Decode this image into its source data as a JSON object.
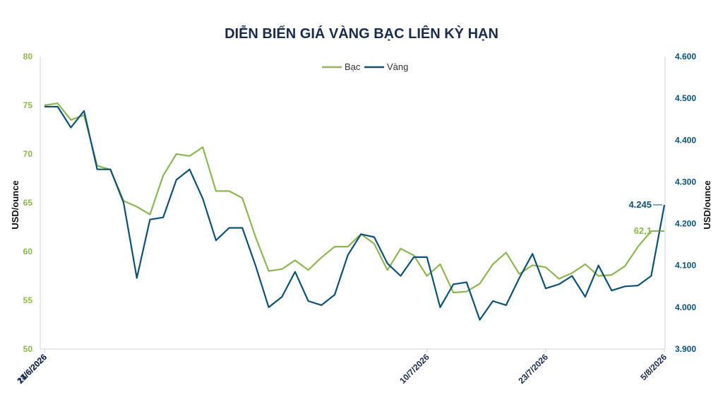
{
  "chart_data": {
    "type": "line",
    "title": "DIỄN BIẾN GIÁ VÀNG BẠC LIÊN KỲ HẠN",
    "ylabel_left": "USD/ounce",
    "ylabel_right": "USD/ounce",
    "ylim_left": [
      50,
      80
    ],
    "ylim_right": [
      3900,
      4600
    ],
    "y_ticks_left": [
      "50",
      "55",
      "60",
      "65",
      "70",
      "75",
      "80"
    ],
    "y_ticks_right": [
      "3.900",
      "4.000",
      "4.100",
      "4.200",
      "4.300",
      "4.400",
      "4.500",
      "4.600"
    ],
    "x_tick_labels": [
      "1/6/2026",
      "14/6/2026",
      "27/6/2026",
      "10/7/2026",
      "23/7/2026",
      "5/8/2026"
    ],
    "grid": false,
    "legend_position": "top-center",
    "colors": {
      "silver": "#8db554",
      "gold": "#0d5173",
      "left_axis": "#8db554",
      "right_axis": "#0d5173",
      "title": "#1b2b4b"
    },
    "series": [
      {
        "name": "Bạc",
        "axis": "left",
        "color": "#8db554",
        "x": [
          "1/6/2026",
          "2/6/2026",
          "3/6/2026",
          "4/6/2026",
          "5/6/2026",
          "8/6/2026",
          "9/6/2026",
          "10/6/2026",
          "11/6/2026",
          "12/6/2026",
          "15/6/2026",
          "16/6/2026",
          "17/6/2026",
          "18/6/2026",
          "19/6/2026",
          "22/6/2026",
          "23/6/2026",
          "24/6/2026",
          "25/6/2026",
          "26/6/2026",
          "29/6/2026",
          "30/6/2026",
          "1/7/2026",
          "2/7/2026",
          "3/7/2026",
          "6/7/2026",
          "7/7/2026",
          "8/7/2026",
          "9/7/2026",
          "10/7/2026",
          "13/7/2026",
          "14/7/2026",
          "15/7/2026",
          "16/7/2026",
          "17/7/2026",
          "20/7/2026",
          "21/7/2026",
          "22/7/2026",
          "23/7/2026",
          "24/7/2026",
          "27/7/2026",
          "28/7/2026",
          "29/7/2026",
          "30/7/2026",
          "31/7/2026",
          "3/8/2026",
          "4/8/2026",
          "5/8/2026"
        ],
        "values": [
          75.0,
          75.2,
          73.5,
          74.0,
          68.8,
          68.4,
          65.2,
          64.6,
          63.8,
          67.8,
          70.0,
          69.8,
          70.7,
          66.2,
          66.2,
          65.5,
          61.5,
          58.0,
          58.2,
          59.1,
          58.1,
          59.4,
          60.5,
          60.5,
          61.8,
          60.8,
          58.1,
          60.3,
          59.6,
          57.5,
          58.7,
          55.8,
          55.9,
          56.7,
          58.7,
          59.9,
          57.7,
          58.6,
          58.4,
          57.2,
          57.8,
          58.7,
          57.5,
          57.6,
          58.5,
          60.5,
          62.1,
          62.1
        ],
        "end_label": "62,1"
      },
      {
        "name": "Vàng",
        "axis": "right",
        "color": "#0d5173",
        "x": [
          "1/6/2026",
          "2/6/2026",
          "3/6/2026",
          "4/6/2026",
          "5/6/2026",
          "8/6/2026",
          "9/6/2026",
          "10/6/2026",
          "11/6/2026",
          "12/6/2026",
          "15/6/2026",
          "16/6/2026",
          "17/6/2026",
          "18/6/2026",
          "19/6/2026",
          "22/6/2026",
          "23/6/2026",
          "24/6/2026",
          "25/6/2026",
          "26/6/2026",
          "29/6/2026",
          "30/6/2026",
          "1/7/2026",
          "2/7/2026",
          "3/7/2026",
          "6/7/2026",
          "7/7/2026",
          "8/7/2026",
          "9/7/2026",
          "10/7/2026",
          "13/7/2026",
          "14/7/2026",
          "15/7/2026",
          "16/7/2026",
          "17/7/2026",
          "20/7/2026",
          "21/7/2026",
          "22/7/2026",
          "23/7/2026",
          "24/7/2026",
          "27/7/2026",
          "28/7/2026",
          "29/7/2026",
          "30/7/2026",
          "31/7/2026",
          "3/8/2026",
          "4/8/2026",
          "5/8/2026"
        ],
        "values": [
          4480,
          4480,
          4430,
          4470,
          4330,
          4330,
          4250,
          4070,
          4210,
          4215,
          4305,
          4330,
          4260,
          4160,
          4190,
          4190,
          4100,
          4000,
          4025,
          4085,
          4015,
          4005,
          4030,
          4125,
          4175,
          4168,
          4105,
          4075,
          4120,
          4120,
          4000,
          4055,
          4060,
          3970,
          4015,
          4005,
          4070,
          4128,
          4045,
          4055,
          4075,
          4025,
          4100,
          4040,
          4050,
          4052,
          4075,
          4245
        ],
        "end_label": "4.245"
      }
    ]
  }
}
